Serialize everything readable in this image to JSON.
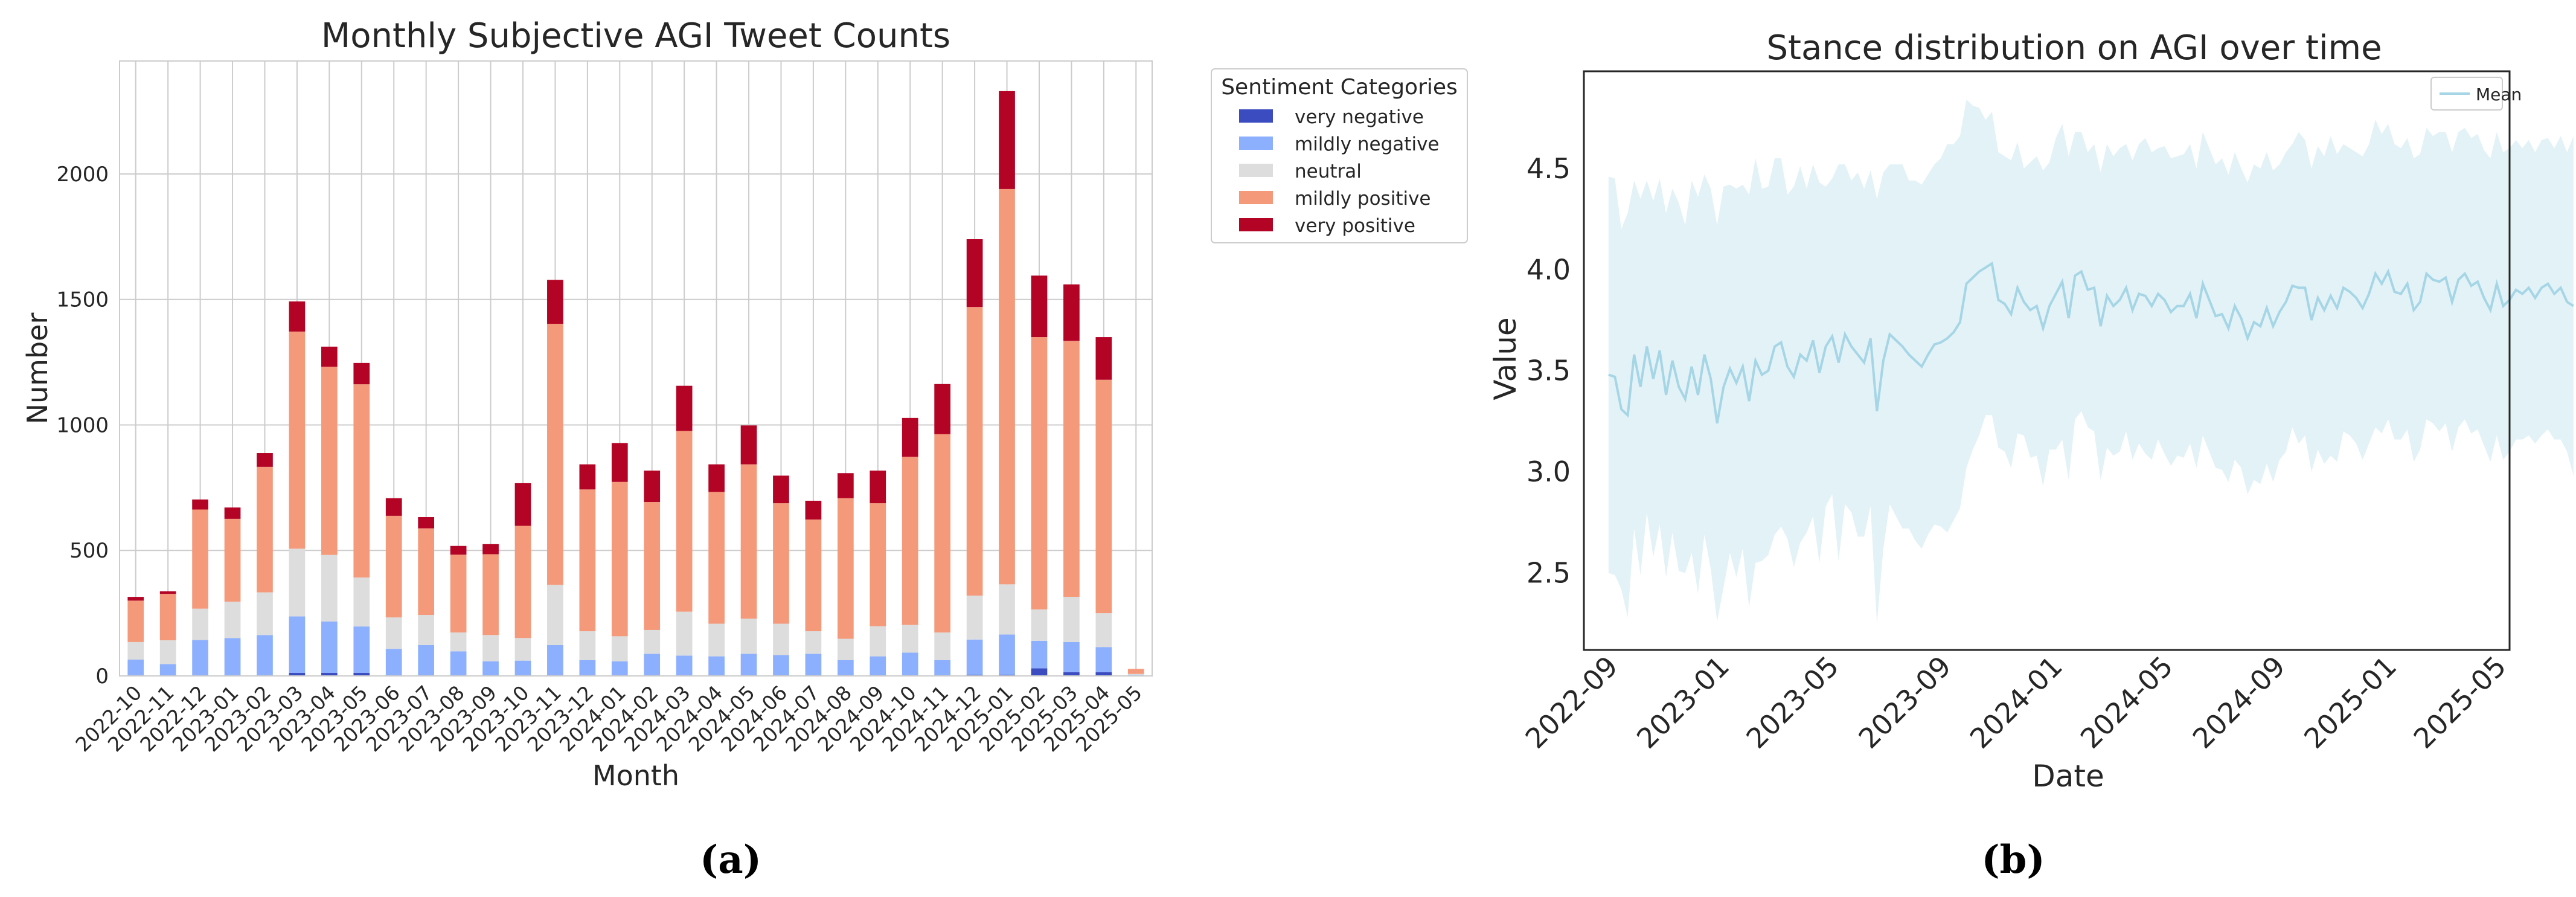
{
  "colors": {
    "very_negative": "#3b4cc0",
    "mildly_negative": "#8db0fe",
    "neutral": "#dddddd",
    "mildly_positive": "#f49a7b",
    "very_positive": "#b40426",
    "mean_line": "#a6d6e6",
    "band_fill": "#e3f2f7",
    "grid": "#cccccc"
  },
  "panels": {
    "a": {
      "label_open": "(",
      "label_letter": "a",
      "label_close": ")"
    },
    "b": {
      "label_open": "(",
      "label_letter": "b",
      "label_close": ")"
    }
  },
  "chart_data": [
    {
      "type": "bar",
      "stacked": true,
      "title": "Monthly Subjective AGI Tweet Counts",
      "xlabel": "Month",
      "ylabel": "Number",
      "ylim": [
        0,
        2450
      ],
      "yticks": [
        0,
        500,
        1000,
        1500,
        2000
      ],
      "grid": true,
      "legend_title": "Sentiment Categories",
      "legend_position": "outside-right-top",
      "categories": [
        "2022-10",
        "2022-11",
        "2022-12",
        "2023-01",
        "2023-02",
        "2023-03",
        "2023-04",
        "2023-05",
        "2023-06",
        "2023-07",
        "2023-08",
        "2023-09",
        "2023-10",
        "2023-11",
        "2023-12",
        "2024-01",
        "2024-02",
        "2024-03",
        "2024-04",
        "2024-05",
        "2024-06",
        "2024-07",
        "2024-08",
        "2024-09",
        "2024-10",
        "2024-11",
        "2024-12",
        "2025-01",
        "2025-02",
        "2025-03",
        "2025-04",
        "2025-05"
      ],
      "series": [
        {
          "name": "very negative",
          "key": "very_negative",
          "values": [
            3,
            2,
            3,
            3,
            3,
            12,
            12,
            12,
            3,
            3,
            3,
            3,
            3,
            3,
            3,
            3,
            3,
            3,
            3,
            3,
            3,
            3,
            3,
            3,
            3,
            3,
            5,
            5,
            30,
            15,
            15,
            0
          ]
        },
        {
          "name": "mildly negative",
          "key": "mildly_negative",
          "values": [
            62,
            45,
            140,
            148,
            160,
            225,
            205,
            185,
            105,
            120,
            95,
            55,
            58,
            120,
            60,
            55,
            85,
            78,
            75,
            85,
            80,
            85,
            60,
            75,
            90,
            60,
            140,
            160,
            110,
            120,
            100,
            4
          ]
        },
        {
          "name": "neutral",
          "key": "neutral",
          "values": [
            70,
            95,
            125,
            145,
            170,
            270,
            265,
            195,
            125,
            120,
            75,
            105,
            90,
            240,
            115,
            100,
            95,
            175,
            130,
            140,
            125,
            90,
            85,
            120,
            110,
            110,
            175,
            200,
            125,
            180,
            135,
            4
          ]
        },
        {
          "name": "mildly positive",
          "key": "mildly_positive",
          "values": [
            165,
            185,
            395,
            330,
            500,
            865,
            750,
            770,
            405,
            345,
            310,
            322,
            447,
            1040,
            565,
            615,
            510,
            720,
            525,
            615,
            480,
            445,
            560,
            490,
            670,
            790,
            1150,
            1575,
            1085,
            1020,
            930,
            20
          ]
        },
        {
          "name": "very positive",
          "key": "very_positive",
          "values": [
            15,
            10,
            40,
            45,
            55,
            120,
            80,
            85,
            70,
            45,
            35,
            40,
            170,
            175,
            100,
            155,
            125,
            180,
            110,
            155,
            110,
            75,
            100,
            130,
            155,
            200,
            270,
            390,
            245,
            225,
            170,
            0
          ]
        }
      ]
    },
    {
      "type": "line",
      "title": "Stance distribution on AGI over time",
      "xlabel": "Date",
      "ylabel": "Value",
      "x_range": [
        "2022-08-05",
        "2025-05-15"
      ],
      "x_start": "2022-09-01",
      "x_step_days": 7,
      "ylim": [
        2.12,
        4.98
      ],
      "yticks": [
        2.5,
        3.0,
        3.5,
        4.0,
        4.5
      ],
      "xticks": [
        "2022-09",
        "2023-01",
        "2023-05",
        "2023-09",
        "2024-01",
        "2024-05",
        "2024-09",
        "2025-01",
        "2025-05"
      ],
      "legend": [
        "Mean"
      ],
      "legend_position": "top-right",
      "series": [
        {
          "name": "Mean",
          "values": [
            3.48,
            3.47,
            3.31,
            3.28,
            3.58,
            3.42,
            3.62,
            3.46,
            3.6,
            3.38,
            3.55,
            3.42,
            3.36,
            3.52,
            3.38,
            3.58,
            3.46,
            3.24,
            3.42,
            3.51,
            3.44,
            3.52,
            3.35,
            3.55,
            3.48,
            3.5,
            3.62,
            3.64,
            3.52,
            3.47,
            3.58,
            3.55,
            3.65,
            3.49,
            3.62,
            3.67,
            3.54,
            3.68,
            3.62,
            3.58,
            3.54,
            3.66,
            3.3,
            3.55,
            3.68,
            3.65,
            3.62,
            3.58,
            3.55,
            3.52,
            3.58,
            3.63,
            3.64,
            3.66,
            3.69,
            3.74,
            3.93,
            3.96,
            3.99,
            4.01,
            4.03,
            3.85,
            3.83,
            3.78,
            3.91,
            3.84,
            3.8,
            3.82,
            3.71,
            3.82,
            3.88,
            3.94,
            3.76,
            3.97,
            3.99,
            3.9,
            3.91,
            3.72,
            3.87,
            3.82,
            3.85,
            3.91,
            3.8,
            3.88,
            3.87,
            3.82,
            3.88,
            3.85,
            3.79,
            3.82,
            3.82,
            3.88,
            3.76,
            3.93,
            3.85,
            3.77,
            3.78,
            3.71,
            3.82,
            3.76,
            3.66,
            3.74,
            3.72,
            3.81,
            3.72,
            3.79,
            3.84,
            3.92,
            3.91,
            3.91,
            3.75,
            3.86,
            3.8,
            3.87,
            3.81,
            3.91,
            3.89,
            3.86,
            3.81,
            3.88,
            3.98,
            3.93,
            3.99,
            3.89,
            3.88,
            3.93,
            3.8,
            3.84,
            3.98,
            3.95,
            3.94,
            3.96,
            3.84,
            3.95,
            3.98,
            3.92,
            3.94,
            3.86,
            3.8,
            3.93,
            3.82,
            3.85,
            3.9,
            3.88,
            3.91,
            3.86,
            3.91,
            3.93,
            3.88,
            3.91,
            3.84,
            3.82
          ]
        },
        {
          "name": "Upper band",
          "values": [
            4.46,
            4.45,
            4.2,
            4.28,
            4.44,
            4.35,
            4.44,
            4.34,
            4.45,
            4.28,
            4.4,
            4.33,
            4.22,
            4.44,
            4.36,
            4.47,
            4.4,
            4.22,
            4.41,
            4.42,
            4.4,
            4.42,
            4.37,
            4.55,
            4.4,
            4.41,
            4.55,
            4.55,
            4.37,
            4.41,
            4.51,
            4.4,
            4.52,
            4.43,
            4.41,
            4.45,
            4.52,
            4.52,
            4.44,
            4.48,
            4.4,
            4.49,
            4.35,
            4.48,
            4.52,
            4.52,
            4.52,
            4.44,
            4.44,
            4.42,
            4.47,
            4.52,
            4.55,
            4.62,
            4.62,
            4.66,
            4.84,
            4.81,
            4.8,
            4.74,
            4.78,
            4.58,
            4.56,
            4.54,
            4.63,
            4.5,
            4.53,
            4.56,
            4.49,
            4.53,
            4.65,
            4.72,
            4.56,
            4.68,
            4.68,
            4.58,
            4.62,
            4.48,
            4.62,
            4.56,
            4.6,
            4.62,
            4.54,
            4.62,
            4.65,
            4.58,
            4.6,
            4.61,
            4.55,
            4.56,
            4.57,
            4.62,
            4.5,
            4.68,
            4.6,
            4.52,
            4.55,
            4.47,
            4.58,
            4.5,
            4.43,
            4.52,
            4.5,
            4.58,
            4.49,
            4.52,
            4.58,
            4.62,
            4.68,
            4.64,
            4.5,
            4.61,
            4.56,
            4.66,
            4.57,
            4.62,
            4.6,
            4.58,
            4.56,
            4.62,
            4.74,
            4.67,
            4.72,
            4.62,
            4.6,
            4.65,
            4.55,
            4.57,
            4.7,
            4.66,
            4.68,
            4.68,
            4.58,
            4.68,
            4.7,
            4.65,
            4.67,
            4.59,
            4.55,
            4.68,
            4.58,
            4.6,
            4.64,
            4.6,
            4.64,
            4.58,
            4.64,
            4.65,
            4.6,
            4.66,
            4.58,
            4.66
          ]
        },
        {
          "name": "Lower band",
          "values": [
            2.5,
            2.49,
            2.42,
            2.28,
            2.72,
            2.49,
            2.8,
            2.58,
            2.74,
            2.48,
            2.7,
            2.51,
            2.5,
            2.6,
            2.4,
            2.69,
            2.52,
            2.26,
            2.43,
            2.6,
            2.48,
            2.62,
            2.33,
            2.55,
            2.56,
            2.59,
            2.69,
            2.73,
            2.67,
            2.53,
            2.65,
            2.7,
            2.78,
            2.55,
            2.83,
            2.89,
            2.56,
            2.84,
            2.8,
            2.68,
            2.68,
            2.83,
            2.25,
            2.62,
            2.84,
            2.78,
            2.72,
            2.72,
            2.66,
            2.62,
            2.69,
            2.74,
            2.73,
            2.7,
            2.76,
            2.82,
            3.02,
            3.11,
            3.18,
            3.28,
            3.28,
            3.12,
            3.1,
            3.02,
            3.19,
            3.18,
            3.07,
            3.08,
            2.93,
            3.11,
            3.11,
            3.16,
            2.96,
            3.26,
            3.3,
            3.22,
            3.2,
            2.96,
            3.12,
            3.08,
            3.1,
            3.2,
            3.06,
            3.14,
            3.09,
            3.06,
            3.16,
            3.09,
            3.03,
            3.08,
            3.07,
            3.14,
            3.02,
            3.18,
            3.1,
            3.02,
            3.01,
            2.95,
            3.06,
            3.02,
            2.89,
            2.96,
            2.94,
            3.04,
            2.95,
            3.06,
            3.1,
            3.22,
            3.14,
            3.18,
            3.0,
            3.11,
            3.04,
            3.08,
            3.05,
            3.2,
            3.18,
            3.14,
            3.06,
            3.14,
            3.22,
            3.19,
            3.26,
            3.16,
            3.16,
            3.21,
            3.05,
            3.11,
            3.26,
            3.24,
            3.2,
            3.24,
            3.1,
            3.22,
            3.26,
            3.19,
            3.21,
            3.13,
            3.05,
            3.18,
            3.06,
            3.1,
            3.16,
            3.16,
            3.18,
            3.14,
            3.18,
            3.21,
            3.16,
            3.16,
            3.1,
            2.98
          ]
        }
      ]
    }
  ]
}
